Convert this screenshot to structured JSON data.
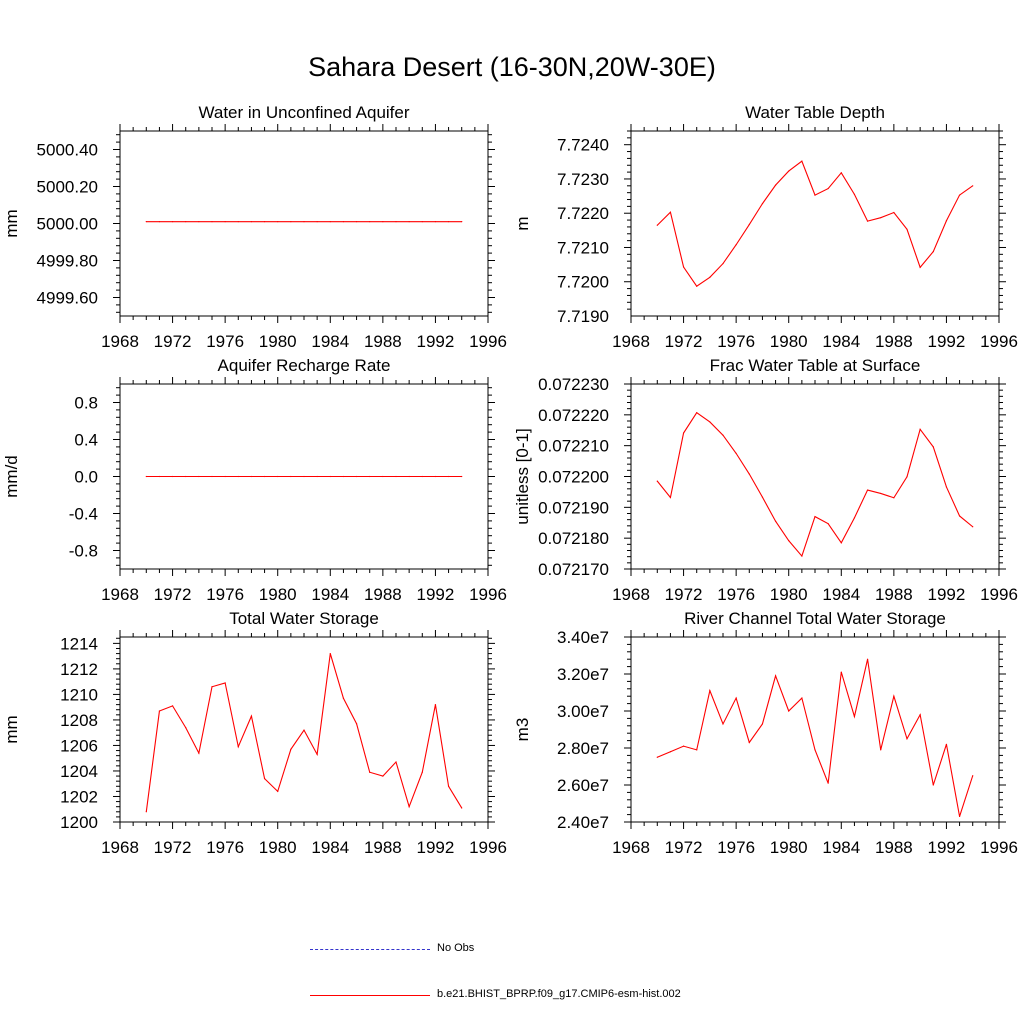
{
  "main_title": "Sahara Desert (16-30N,20W-30E)",
  "legend": [
    {
      "label": "No Obs",
      "color": "#0000cc",
      "style": "dashed"
    },
    {
      "label": "b.e21.BHIST_BPRP.f09_g17.CMIP6-esm-hist.002",
      "color": "#ff0000",
      "style": "solid"
    }
  ],
  "chart_data": [
    {
      "type": "line",
      "title": "Water in Unconfined Aquifer",
      "ylabel": "mm",
      "xlim": [
        1968,
        1996
      ],
      "ylim": [
        4999.5,
        5000.5
      ],
      "xticks": [
        "1968",
        "1972",
        "1976",
        "1980",
        "1984",
        "1988",
        "1992",
        "1996"
      ],
      "yticks": [
        {
          "value": 4999.6,
          "label": "4999.60"
        },
        {
          "value": 4999.8,
          "label": "4999.80"
        },
        {
          "value": 5000.0,
          "label": "5000.00"
        },
        {
          "value": 5000.2,
          "label": "5000.20"
        },
        {
          "value": 5000.4,
          "label": "5000.40"
        }
      ],
      "series": [
        {
          "color": "#ff0000",
          "x": [
            1970,
            1971,
            1972,
            1973,
            1974,
            1975,
            1976,
            1977,
            1978,
            1979,
            1980,
            1981,
            1982,
            1983,
            1984,
            1985,
            1986,
            1987,
            1988,
            1989,
            1990,
            1991,
            1992,
            1993,
            1994
          ],
          "y": [
            5000.01,
            5000.01,
            5000.01,
            5000.01,
            5000.01,
            5000.01,
            5000.01,
            5000.01,
            5000.01,
            5000.01,
            5000.01,
            5000.01,
            5000.01,
            5000.01,
            5000.01,
            5000.01,
            5000.01,
            5000.01,
            5000.01,
            5000.01,
            5000.01,
            5000.01,
            5000.01,
            5000.01,
            5000.01
          ]
        }
      ]
    },
    {
      "type": "line",
      "title": "Water Table Depth",
      "ylabel": "m",
      "xlim": [
        1968,
        1996
      ],
      "ylim": [
        7.719,
        7.7244
      ],
      "xticks": [
        "1968",
        "1972",
        "1976",
        "1980",
        "1984",
        "1988",
        "1992",
        "1996"
      ],
      "yticks": [
        {
          "value": 7.719,
          "label": "7.7190"
        },
        {
          "value": 7.72,
          "label": "7.7200"
        },
        {
          "value": 7.721,
          "label": "7.7210"
        },
        {
          "value": 7.722,
          "label": "7.7220"
        },
        {
          "value": 7.723,
          "label": "7.7230"
        },
        {
          "value": 7.724,
          "label": "7.7240"
        }
      ],
      "series": [
        {
          "color": "#ff0000",
          "x": [
            1970,
            1971,
            1972,
            1973,
            1974,
            1975,
            1976,
            1977,
            1978,
            1979,
            1980,
            1981,
            1982,
            1983,
            1984,
            1985,
            1986,
            1987,
            1988,
            1989,
            1990,
            1991,
            1992,
            1993,
            1994
          ],
          "y": [
            7.72165,
            7.72203,
            7.72043,
            7.71987,
            7.72013,
            7.72053,
            7.72108,
            7.72167,
            7.72228,
            7.72282,
            7.72323,
            7.72352,
            7.72253,
            7.72272,
            7.72318,
            7.72255,
            7.72177,
            7.72187,
            7.72202,
            7.72153,
            7.72042,
            7.72088,
            7.72178,
            7.72253,
            7.7228
          ]
        }
      ]
    },
    {
      "type": "line",
      "title": "Aquifer Recharge Rate",
      "ylabel": "mm/d",
      "xlim": [
        1968,
        1996
      ],
      "ylim": [
        -1.0,
        1.0
      ],
      "xticks": [
        "1968",
        "1972",
        "1976",
        "1980",
        "1984",
        "1988",
        "1992",
        "1996"
      ],
      "yticks": [
        {
          "value": -0.8,
          "label": "-0.8"
        },
        {
          "value": -0.4,
          "label": "-0.4"
        },
        {
          "value": 0.0,
          "label": "0.0"
        },
        {
          "value": 0.4,
          "label": "0.4"
        },
        {
          "value": 0.8,
          "label": "0.8"
        }
      ],
      "series": [
        {
          "color": "#ff0000",
          "x": [
            1970,
            1971,
            1972,
            1973,
            1974,
            1975,
            1976,
            1977,
            1978,
            1979,
            1980,
            1981,
            1982,
            1983,
            1984,
            1985,
            1986,
            1987,
            1988,
            1989,
            1990,
            1991,
            1992,
            1993,
            1994
          ],
          "y": [
            0,
            0,
            0,
            0,
            0,
            0,
            0,
            0,
            0,
            0,
            0,
            0,
            0,
            0,
            0,
            0,
            0,
            0,
            0,
            0,
            0,
            0,
            0,
            0,
            0
          ]
        }
      ]
    },
    {
      "type": "line",
      "title": "Frac Water Table at Surface",
      "ylabel": "unitless [0-1]",
      "xlim": [
        1968,
        1996
      ],
      "ylim": [
        0.07217,
        0.07223
      ],
      "xticks": [
        "1968",
        "1972",
        "1976",
        "1980",
        "1984",
        "1988",
        "1992",
        "1996"
      ],
      "yticks": [
        {
          "value": 0.07217,
          "label": "0.072170"
        },
        {
          "value": 0.07218,
          "label": "0.072180"
        },
        {
          "value": 0.07219,
          "label": "0.072190"
        },
        {
          "value": 0.0722,
          "label": "0.072200"
        },
        {
          "value": 0.07221,
          "label": "0.072210"
        },
        {
          "value": 0.07222,
          "label": "0.072220"
        },
        {
          "value": 0.07223,
          "label": "0.072230"
        }
      ],
      "series": [
        {
          "color": "#ff0000",
          "x": [
            1970,
            1971,
            1972,
            1973,
            1974,
            1975,
            1976,
            1977,
            1978,
            1979,
            1980,
            1981,
            1982,
            1983,
            1984,
            1985,
            1986,
            1987,
            1988,
            1989,
            1990,
            1991,
            1992,
            1993,
            1994
          ],
          "y": [
            0.0721985,
            0.0721932,
            0.0722141,
            0.0722207,
            0.0722177,
            0.0722134,
            0.0722075,
            0.0722008,
            0.0721933,
            0.0721855,
            0.0721792,
            0.0721742,
            0.072187,
            0.0721847,
            0.0721785,
            0.0721866,
            0.0721956,
            0.0721945,
            0.0721931,
            0.0721999,
            0.0722153,
            0.0722096,
            0.0721966,
            0.0721872,
            0.0721837
          ]
        }
      ]
    },
    {
      "type": "line",
      "title": "Total Water Storage",
      "ylabel": "mm",
      "xlim": [
        1968,
        1996
      ],
      "ylim": [
        1200,
        1214.5
      ],
      "xticks": [
        "1968",
        "1972",
        "1976",
        "1980",
        "1984",
        "1988",
        "1992",
        "1996"
      ],
      "yticks": [
        {
          "value": 1200,
          "label": "1200"
        },
        {
          "value": 1202,
          "label": "1202"
        },
        {
          "value": 1204,
          "label": "1204"
        },
        {
          "value": 1206,
          "label": "1206"
        },
        {
          "value": 1208,
          "label": "1208"
        },
        {
          "value": 1210,
          "label": "1210"
        },
        {
          "value": 1212,
          "label": "1212"
        },
        {
          "value": 1214,
          "label": "1214"
        }
      ],
      "series": [
        {
          "color": "#ff0000",
          "x": [
            1970,
            1971,
            1972,
            1973,
            1974,
            1975,
            1976,
            1977,
            1978,
            1979,
            1980,
            1981,
            1982,
            1983,
            1984,
            1985,
            1986,
            1987,
            1988,
            1989,
            1990,
            1991,
            1992,
            1993,
            1994
          ],
          "y": [
            1200.8,
            1208.7,
            1209.1,
            1207.4,
            1205.4,
            1210.6,
            1210.9,
            1205.9,
            1208.3,
            1203.4,
            1202.4,
            1205.7,
            1207.2,
            1205.3,
            1213.2,
            1209.7,
            1207.7,
            1203.9,
            1203.6,
            1204.7,
            1201.2,
            1203.9,
            1209.2,
            1202.8,
            1201.1
          ]
        }
      ]
    },
    {
      "type": "line",
      "title": "River Channel Total Water Storage",
      "ylabel": "m3",
      "xlim": [
        1968,
        1996
      ],
      "ylim": [
        24000000,
        34000000
      ],
      "xticks": [
        "1968",
        "1972",
        "1976",
        "1980",
        "1984",
        "1988",
        "1992",
        "1996"
      ],
      "yticks": [
        {
          "value": 24000000,
          "label": "2.40e7"
        },
        {
          "value": 26000000,
          "label": "2.60e7"
        },
        {
          "value": 28000000,
          "label": "2.80e7"
        },
        {
          "value": 30000000,
          "label": "3.00e7"
        },
        {
          "value": 32000000,
          "label": "3.20e7"
        },
        {
          "value": 34000000,
          "label": "3.40e7"
        }
      ],
      "series": [
        {
          "color": "#ff0000",
          "x": [
            1970,
            1971,
            1972,
            1973,
            1974,
            1975,
            1976,
            1977,
            1978,
            1979,
            1980,
            1981,
            1982,
            1983,
            1984,
            1985,
            1986,
            1987,
            1988,
            1989,
            1990,
            1991,
            1992,
            1993,
            1994
          ],
          "y": [
            27500000,
            27800000,
            28100000,
            27900000,
            31100000,
            29300000,
            30700000,
            28300000,
            29300000,
            31900000,
            30000000,
            30700000,
            27900000,
            26100000,
            32100000,
            29700000,
            32800000,
            27900000,
            30800000,
            28500000,
            29800000,
            26000000,
            28200000,
            24300000,
            26500000
          ]
        }
      ]
    }
  ]
}
